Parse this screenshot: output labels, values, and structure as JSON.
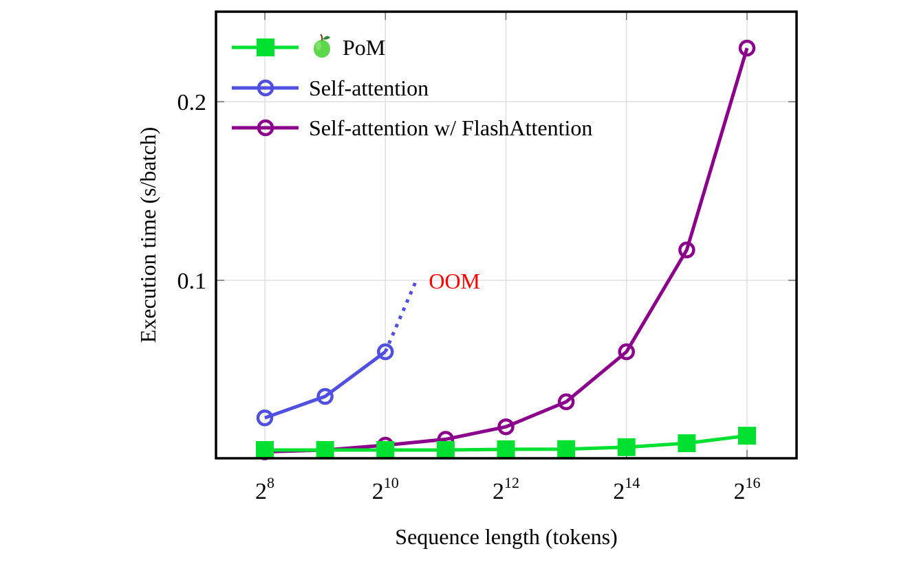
{
  "chart_data": {
    "type": "line",
    "title": "",
    "xlabel": "Sequence length (tokens)",
    "ylabel": "Execution time (s/batch)",
    "x_scale": "log2",
    "x": [
      256,
      512,
      1024,
      2048,
      4096,
      8192,
      16384,
      32768,
      65536
    ],
    "x_exponents": [
      8,
      9,
      10,
      11,
      12,
      13,
      14,
      15,
      16
    ],
    "xlim_exponent": [
      7.6,
      16.45
    ],
    "ylim": [
      0,
      0.25
    ],
    "x_ticks": [
      {
        "base": "2",
        "exp": "8",
        "value_exp": 8
      },
      {
        "base": "2",
        "exp": "10",
        "value_exp": 10
      },
      {
        "base": "2",
        "exp": "12",
        "value_exp": 12
      },
      {
        "base": "2",
        "exp": "14",
        "value_exp": 14
      },
      {
        "base": "2",
        "exp": "16",
        "value_exp": 16
      }
    ],
    "y_ticks": [
      {
        "label": "0.1",
        "value": 0.1
      },
      {
        "label": "0.2",
        "value": 0.2
      }
    ],
    "grid": true,
    "legend_position": "top-left",
    "series": [
      {
        "name": "PoM",
        "legend_emoji": "🍏",
        "color": "#00e030",
        "marker": "square-filled",
        "x_exponents": [
          8,
          9,
          10,
          11,
          12,
          13,
          14,
          15,
          16
        ],
        "values": [
          0.005,
          0.005,
          0.005,
          0.005,
          0.0054,
          0.0055,
          0.0066,
          0.0088,
          0.013
        ]
      },
      {
        "name": "Self-attention",
        "color": "#5050e0",
        "marker": "circle-open",
        "x_exponents": [
          8,
          9,
          10
        ],
        "values": [
          0.023,
          0.035,
          0.06
        ],
        "oom_extension": {
          "to_exponent": 10.5,
          "to_value": 0.099,
          "style": "dotted"
        }
      },
      {
        "name": "Self-attention w/ FlashAttention",
        "color": "#8b008b",
        "marker": "circle-open",
        "x_exponents": [
          8,
          9,
          10,
          11,
          12,
          13,
          14,
          15,
          16
        ],
        "values": [
          0.004,
          0.005,
          0.0077,
          0.011,
          0.018,
          0.032,
          0.06,
          0.117,
          0.23
        ]
      }
    ],
    "annotations": [
      {
        "text": "OOM",
        "color": "#ff0000",
        "x_exponent": 10.72,
        "y": 0.1
      }
    ]
  }
}
